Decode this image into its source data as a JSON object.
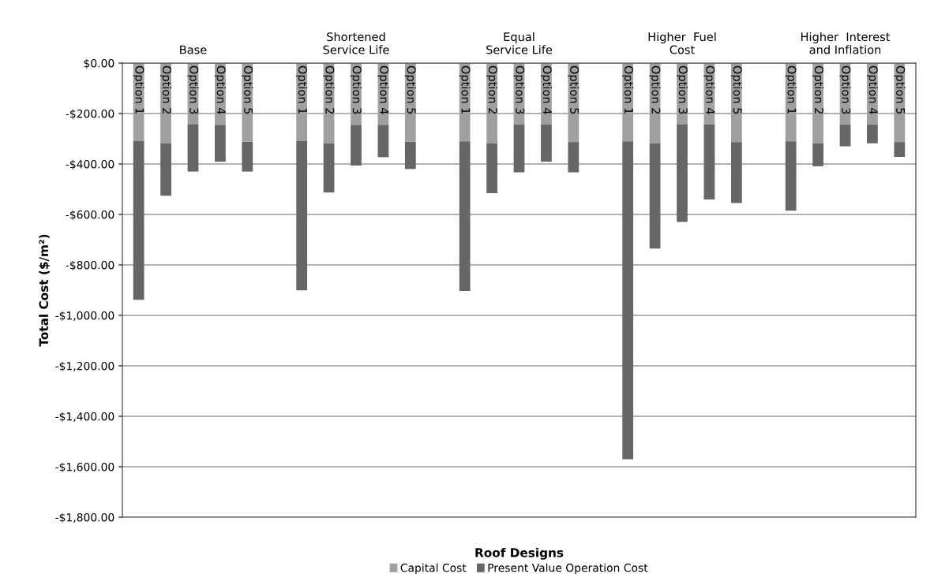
{
  "chart_data": {
    "type": "bar",
    "stacked": true,
    "xlabel": "Roof Designs",
    "ylabel": "Total Cost ($/m²)",
    "categories": [
      "Option 1",
      "Option 2",
      "Option 3",
      "Option 4",
      "Option 5",
      null,
      "Option 1",
      "Option 2",
      "Option 3",
      "Option 4",
      "Option 5",
      null,
      "Option 1",
      "Option 2",
      "Option 3",
      "Option 4",
      "Option 5",
      null,
      "Option 1",
      "Option 2",
      "Option 3",
      "Option 4",
      "Option 5",
      null,
      "Option 1",
      "Option 2",
      "Option 3",
      "Option 4",
      "Option 5"
    ],
    "annotations": [
      "Base",
      "Shortened\nService Life",
      "Equal\nService Life",
      "Higher  Fuel\nCost",
      "Higher  Interest\nand Inflation"
    ],
    "series": [
      {
        "name": "Capital Cost",
        "color": "#a0a0a0",
        "values": [
          -309,
          -318,
          -242,
          -245,
          -312,
          null,
          -309,
          -318,
          -245,
          -245,
          -312,
          null,
          -310,
          -318,
          -244,
          -244,
          -313,
          null,
          -310,
          -318,
          -244,
          -244,
          -313,
          null,
          -310,
          -318,
          -244,
          -244,
          -313
        ]
      },
      {
        "name": "Present Value Operation Cost",
        "color": "#666666",
        "values": [
          -629,
          -208,
          -188,
          -146,
          -118,
          null,
          -592,
          -195,
          -161,
          -128,
          -108,
          null,
          -593,
          -198,
          -189,
          -147,
          -120,
          null,
          -1260,
          -417,
          -386,
          -297,
          -242,
          null,
          -275,
          -91,
          -86,
          -74,
          -59
        ]
      }
    ],
    "ylim": [
      -1800,
      0
    ],
    "yticks": [
      {
        "value": 0,
        "label": "$0.00"
      },
      {
        "value": -200,
        "label": "-$200.00"
      },
      {
        "value": -400,
        "label": "-$400.00"
      },
      {
        "value": -600,
        "label": "-$600.00"
      },
      {
        "value": -800,
        "label": "-$800.00"
      },
      {
        "value": -1000,
        "label": "-$1,000.00"
      },
      {
        "value": -1200,
        "label": "-$1,200.00"
      },
      {
        "value": -1400,
        "label": "-$1,400.00"
      },
      {
        "value": -1600,
        "label": "-$1,600.00"
      },
      {
        "value": -1800,
        "label": "-$1,800.00"
      }
    ],
    "grid": "y",
    "legend": "bottom"
  }
}
